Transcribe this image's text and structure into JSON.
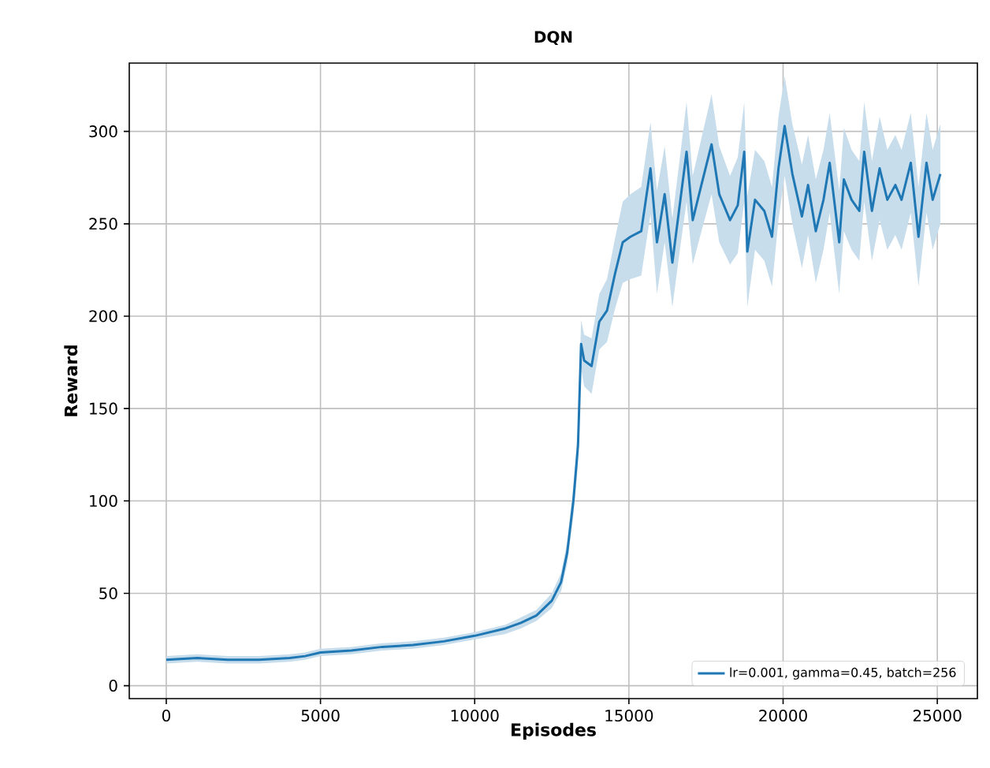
{
  "chart_data": {
    "type": "line",
    "title": "DQN",
    "xlabel": "Episodes",
    "ylabel": "Reward",
    "xlim": [
      -1200,
      26300
    ],
    "ylim": [
      -7,
      337
    ],
    "xticks": [
      0,
      5000,
      10000,
      15000,
      20000,
      25000
    ],
    "yticks": [
      0,
      50,
      100,
      150,
      200,
      250,
      300
    ],
    "grid": true,
    "legend": "bottom right",
    "marker": "none",
    "line_style": "solid",
    "series": [
      {
        "name": "lr=0.001, gamma=0.45, batch=256",
        "color": "#1f77b4",
        "x": [
          0,
          1000,
          2000,
          3000,
          4000,
          4500,
          5000,
          6000,
          7000,
          8000,
          9000,
          10000,
          11000,
          11500,
          12000,
          12500,
          12800,
          13000,
          13200,
          13350,
          13450,
          13550,
          13790,
          14040,
          14290,
          14550,
          14800,
          15050,
          15400,
          15700,
          15910,
          16160,
          16410,
          16670,
          16870,
          17070,
          17320,
          17680,
          17930,
          18280,
          18530,
          18740,
          18840,
          19090,
          19390,
          19640,
          19850,
          20050,
          20300,
          20610,
          20810,
          21060,
          21310,
          21510,
          21820,
          21970,
          22220,
          22470,
          22630,
          22880,
          23130,
          23380,
          23640,
          23840,
          24140,
          24390,
          24650,
          24850,
          25100
        ],
        "values": [
          14,
          15,
          14,
          14,
          15,
          16,
          18,
          19,
          21,
          22,
          24,
          27,
          31,
          34,
          38,
          46,
          56,
          72,
          100,
          130,
          185,
          176,
          173,
          197,
          203,
          223,
          240,
          243,
          246,
          280,
          240,
          266,
          229,
          263,
          289,
          252,
          269,
          293,
          266,
          252,
          260,
          289,
          235,
          263,
          257,
          243,
          280,
          303,
          277,
          254,
          271,
          246,
          263,
          283,
          240,
          274,
          263,
          257,
          289,
          257,
          280,
          263,
          271,
          263,
          283,
          243,
          283,
          263,
          277
        ],
        "lower": [
          12,
          13,
          12,
          12,
          13,
          14,
          16,
          17,
          19,
          20,
          22,
          25,
          28,
          31,
          35,
          42,
          51,
          66,
          92,
          120,
          172,
          162,
          158,
          182,
          186,
          204,
          218,
          220,
          222,
          255,
          212,
          240,
          205,
          238,
          262,
          228,
          244,
          266,
          240,
          228,
          234,
          262,
          205,
          236,
          230,
          216,
          252,
          276,
          250,
          226,
          244,
          218,
          236,
          256,
          212,
          246,
          236,
          230,
          262,
          230,
          252,
          236,
          244,
          236,
          256,
          216,
          256,
          236,
          250
        ],
        "upper": [
          16,
          17,
          16,
          16,
          17,
          18,
          20,
          21,
          23,
          24,
          26,
          29,
          33,
          37,
          41,
          50,
          61,
          78,
          108,
          140,
          198,
          190,
          188,
          212,
          220,
          242,
          262,
          266,
          270,
          305,
          268,
          292,
          253,
          288,
          316,
          276,
          294,
          320,
          292,
          276,
          286,
          316,
          265,
          290,
          284,
          270,
          308,
          330,
          304,
          282,
          298,
          274,
          290,
          310,
          268,
          302,
          290,
          284,
          316,
          284,
          308,
          290,
          298,
          290,
          310,
          270,
          310,
          290,
          304
        ]
      }
    ]
  }
}
